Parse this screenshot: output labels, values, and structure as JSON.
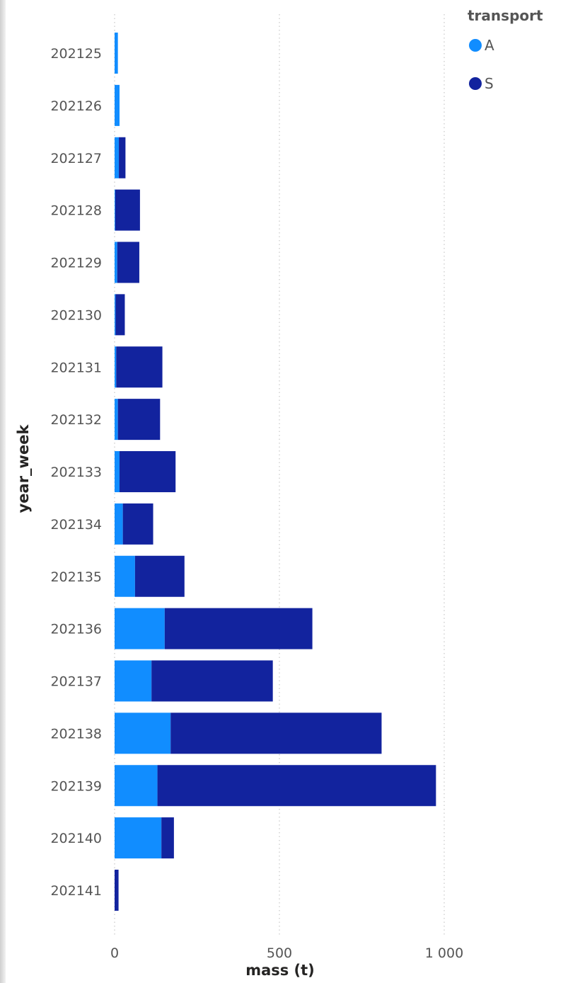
{
  "chart_data": {
    "type": "bar",
    "orientation": "horizontal",
    "stacked": true,
    "categories": [
      "202125",
      "202126",
      "202127",
      "202128",
      "202129",
      "202130",
      "202131",
      "202132",
      "202133",
      "202134",
      "202135",
      "202136",
      "202137",
      "202138",
      "202139",
      "202140",
      "202141"
    ],
    "series": [
      {
        "name": "A",
        "color": "#118DFF",
        "values": [
          10,
          15,
          13,
          2,
          8,
          3,
          5,
          10,
          15,
          25,
          62,
          152,
          112,
          170,
          130,
          142,
          0
        ]
      },
      {
        "name": "S",
        "color": "#12239E",
        "values": [
          0,
          0,
          20,
          75,
          67,
          28,
          140,
          128,
          170,
          92,
          150,
          448,
          368,
          640,
          845,
          38,
          12
        ]
      }
    ],
    "xlabel": "mass (t)",
    "ylabel": "year_week",
    "xlim": [
      0,
      1200
    ],
    "xticks": [
      0,
      500,
      1000
    ],
    "xtick_labels": [
      "0",
      "500",
      "1 000"
    ],
    "grid": "vertical dotted",
    "legend": {
      "title": "transport",
      "position": "top-right"
    }
  }
}
